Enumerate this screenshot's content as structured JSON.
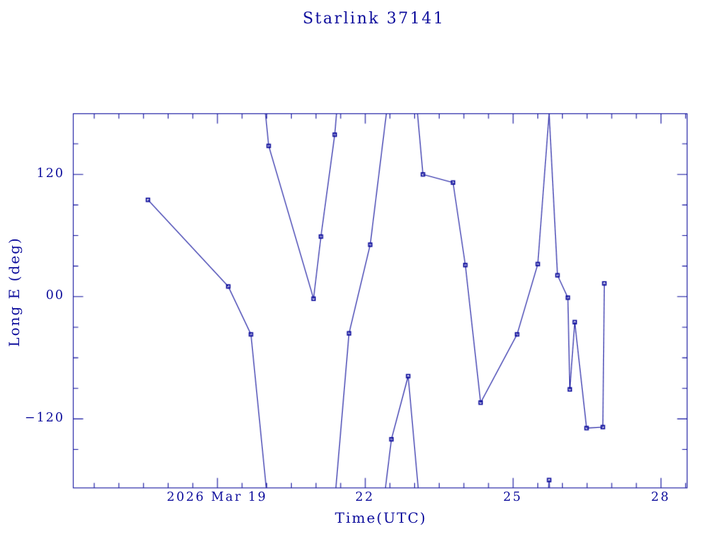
{
  "page": {
    "background": "#ffffff"
  },
  "chart_data": {
    "type": "line",
    "title": "Starlink 37141",
    "xlabel": "Time(UTC)",
    "ylabel": "Long E (deg)",
    "x_unit": "day of March 2026, UTC",
    "y_unit": "degrees east longitude",
    "ink_color": "#0d0d9c",
    "marker": "square",
    "grid": false,
    "legend": "none",
    "xlim": [
      16.075,
      28.53
    ],
    "ylim": [
      -187.7,
      179.6
    ],
    "x_major_ticks": [
      19,
      22,
      25,
      28
    ],
    "x_major_labels": [
      "2026 Mar 19",
      "22",
      "25",
      "28"
    ],
    "x_minor_step": 0.5,
    "y_major_ticks": [
      -120,
      0,
      120
    ],
    "y_major_labels": [
      "−120",
      "00",
      "120"
    ],
    "y_minor_step": 30,
    "y_minor_range": [
      -150,
      150
    ],
    "longitude_wrap_deg": 360,
    "points": [
      [
        17.59,
        95
      ],
      [
        19.22,
        10
      ],
      [
        19.68,
        -37
      ],
      [
        20.04,
        148
      ],
      [
        20.95,
        -2
      ],
      [
        21.1,
        59
      ],
      [
        21.38,
        159
      ],
      [
        21.67,
        -36
      ],
      [
        22.1,
        51
      ],
      [
        22.53,
        -140
      ],
      [
        22.87,
        -78
      ],
      [
        23.17,
        120
      ],
      [
        23.78,
        112
      ],
      [
        24.03,
        31
      ],
      [
        24.34,
        -104
      ],
      [
        25.08,
        -37
      ],
      [
        25.5,
        32
      ],
      [
        25.73,
        -180
      ],
      [
        25.9,
        21
      ],
      [
        26.11,
        -1
      ],
      [
        26.15,
        -91
      ],
      [
        26.25,
        -25
      ],
      [
        26.49,
        -129
      ],
      [
        26.82,
        -128
      ],
      [
        26.85,
        13
      ]
    ]
  }
}
